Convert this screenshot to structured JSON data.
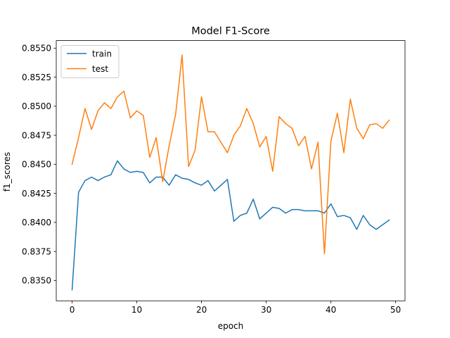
{
  "chart_data": {
    "type": "line",
    "title": "Model F1-Score",
    "xlabel": "epoch",
    "ylabel": "f1_scores",
    "xlim": [
      -2.45,
      51.45
    ],
    "ylim": [
      0.83325,
      0.85565
    ],
    "xticks": [
      0,
      10,
      20,
      30,
      40,
      50
    ],
    "xtick_labels": [
      "0",
      "10",
      "20",
      "30",
      "40",
      "50"
    ],
    "yticks": [
      0.835,
      0.8375,
      0.84,
      0.8425,
      0.845,
      0.8475,
      0.85,
      0.8525,
      0.855
    ],
    "ytick_labels": [
      "0.8350",
      "0.8375",
      "0.8400",
      "0.8425",
      "0.8450",
      "0.8475",
      "0.8500",
      "0.8525",
      "0.8550"
    ],
    "grid": false,
    "legend_position": "top-left",
    "x": [
      0,
      1,
      2,
      3,
      4,
      5,
      6,
      7,
      8,
      9,
      10,
      11,
      12,
      13,
      14,
      15,
      16,
      17,
      18,
      19,
      20,
      21,
      22,
      23,
      24,
      25,
      26,
      27,
      28,
      29,
      30,
      31,
      32,
      33,
      34,
      35,
      36,
      37,
      38,
      39,
      40,
      41,
      42,
      43,
      44,
      45,
      46,
      47,
      48,
      49
    ],
    "series": [
      {
        "name": "train",
        "color": "#1f77b4",
        "values": [
          0.8342,
          0.8426,
          0.8436,
          0.8439,
          0.8436,
          0.8439,
          0.8441,
          0.8453,
          0.8446,
          0.8443,
          0.8444,
          0.8443,
          0.8434,
          0.8439,
          0.8439,
          0.8432,
          0.8441,
          0.8438,
          0.8437,
          0.8434,
          0.8432,
          0.8436,
          0.8427,
          0.8432,
          0.8437,
          0.8401,
          0.8406,
          0.8408,
          0.842,
          0.8403,
          0.8408,
          0.8413,
          0.8412,
          0.8408,
          0.8411,
          0.8411,
          0.841,
          0.841,
          0.841,
          0.8408,
          0.8416,
          0.8405,
          0.8406,
          0.8404,
          0.8394,
          0.8406,
          0.8398,
          0.8394,
          0.8398,
          0.8402
        ]
      },
      {
        "name": "test",
        "color": "#ff7f0e",
        "values": [
          0.845,
          0.8473,
          0.8498,
          0.848,
          0.8496,
          0.8503,
          0.8498,
          0.8508,
          0.8513,
          0.849,
          0.8496,
          0.8492,
          0.8456,
          0.8473,
          0.8435,
          0.8466,
          0.8493,
          0.8544,
          0.8448,
          0.8462,
          0.8508,
          0.8478,
          0.8478,
          0.8469,
          0.846,
          0.8475,
          0.8483,
          0.8498,
          0.8485,
          0.8465,
          0.8474,
          0.8444,
          0.8491,
          0.8485,
          0.8481,
          0.8466,
          0.8474,
          0.8446,
          0.8469,
          0.8373,
          0.847,
          0.8494,
          0.846,
          0.8506,
          0.8481,
          0.8472,
          0.8484,
          0.8485,
          0.8481,
          0.8488
        ]
      }
    ]
  }
}
